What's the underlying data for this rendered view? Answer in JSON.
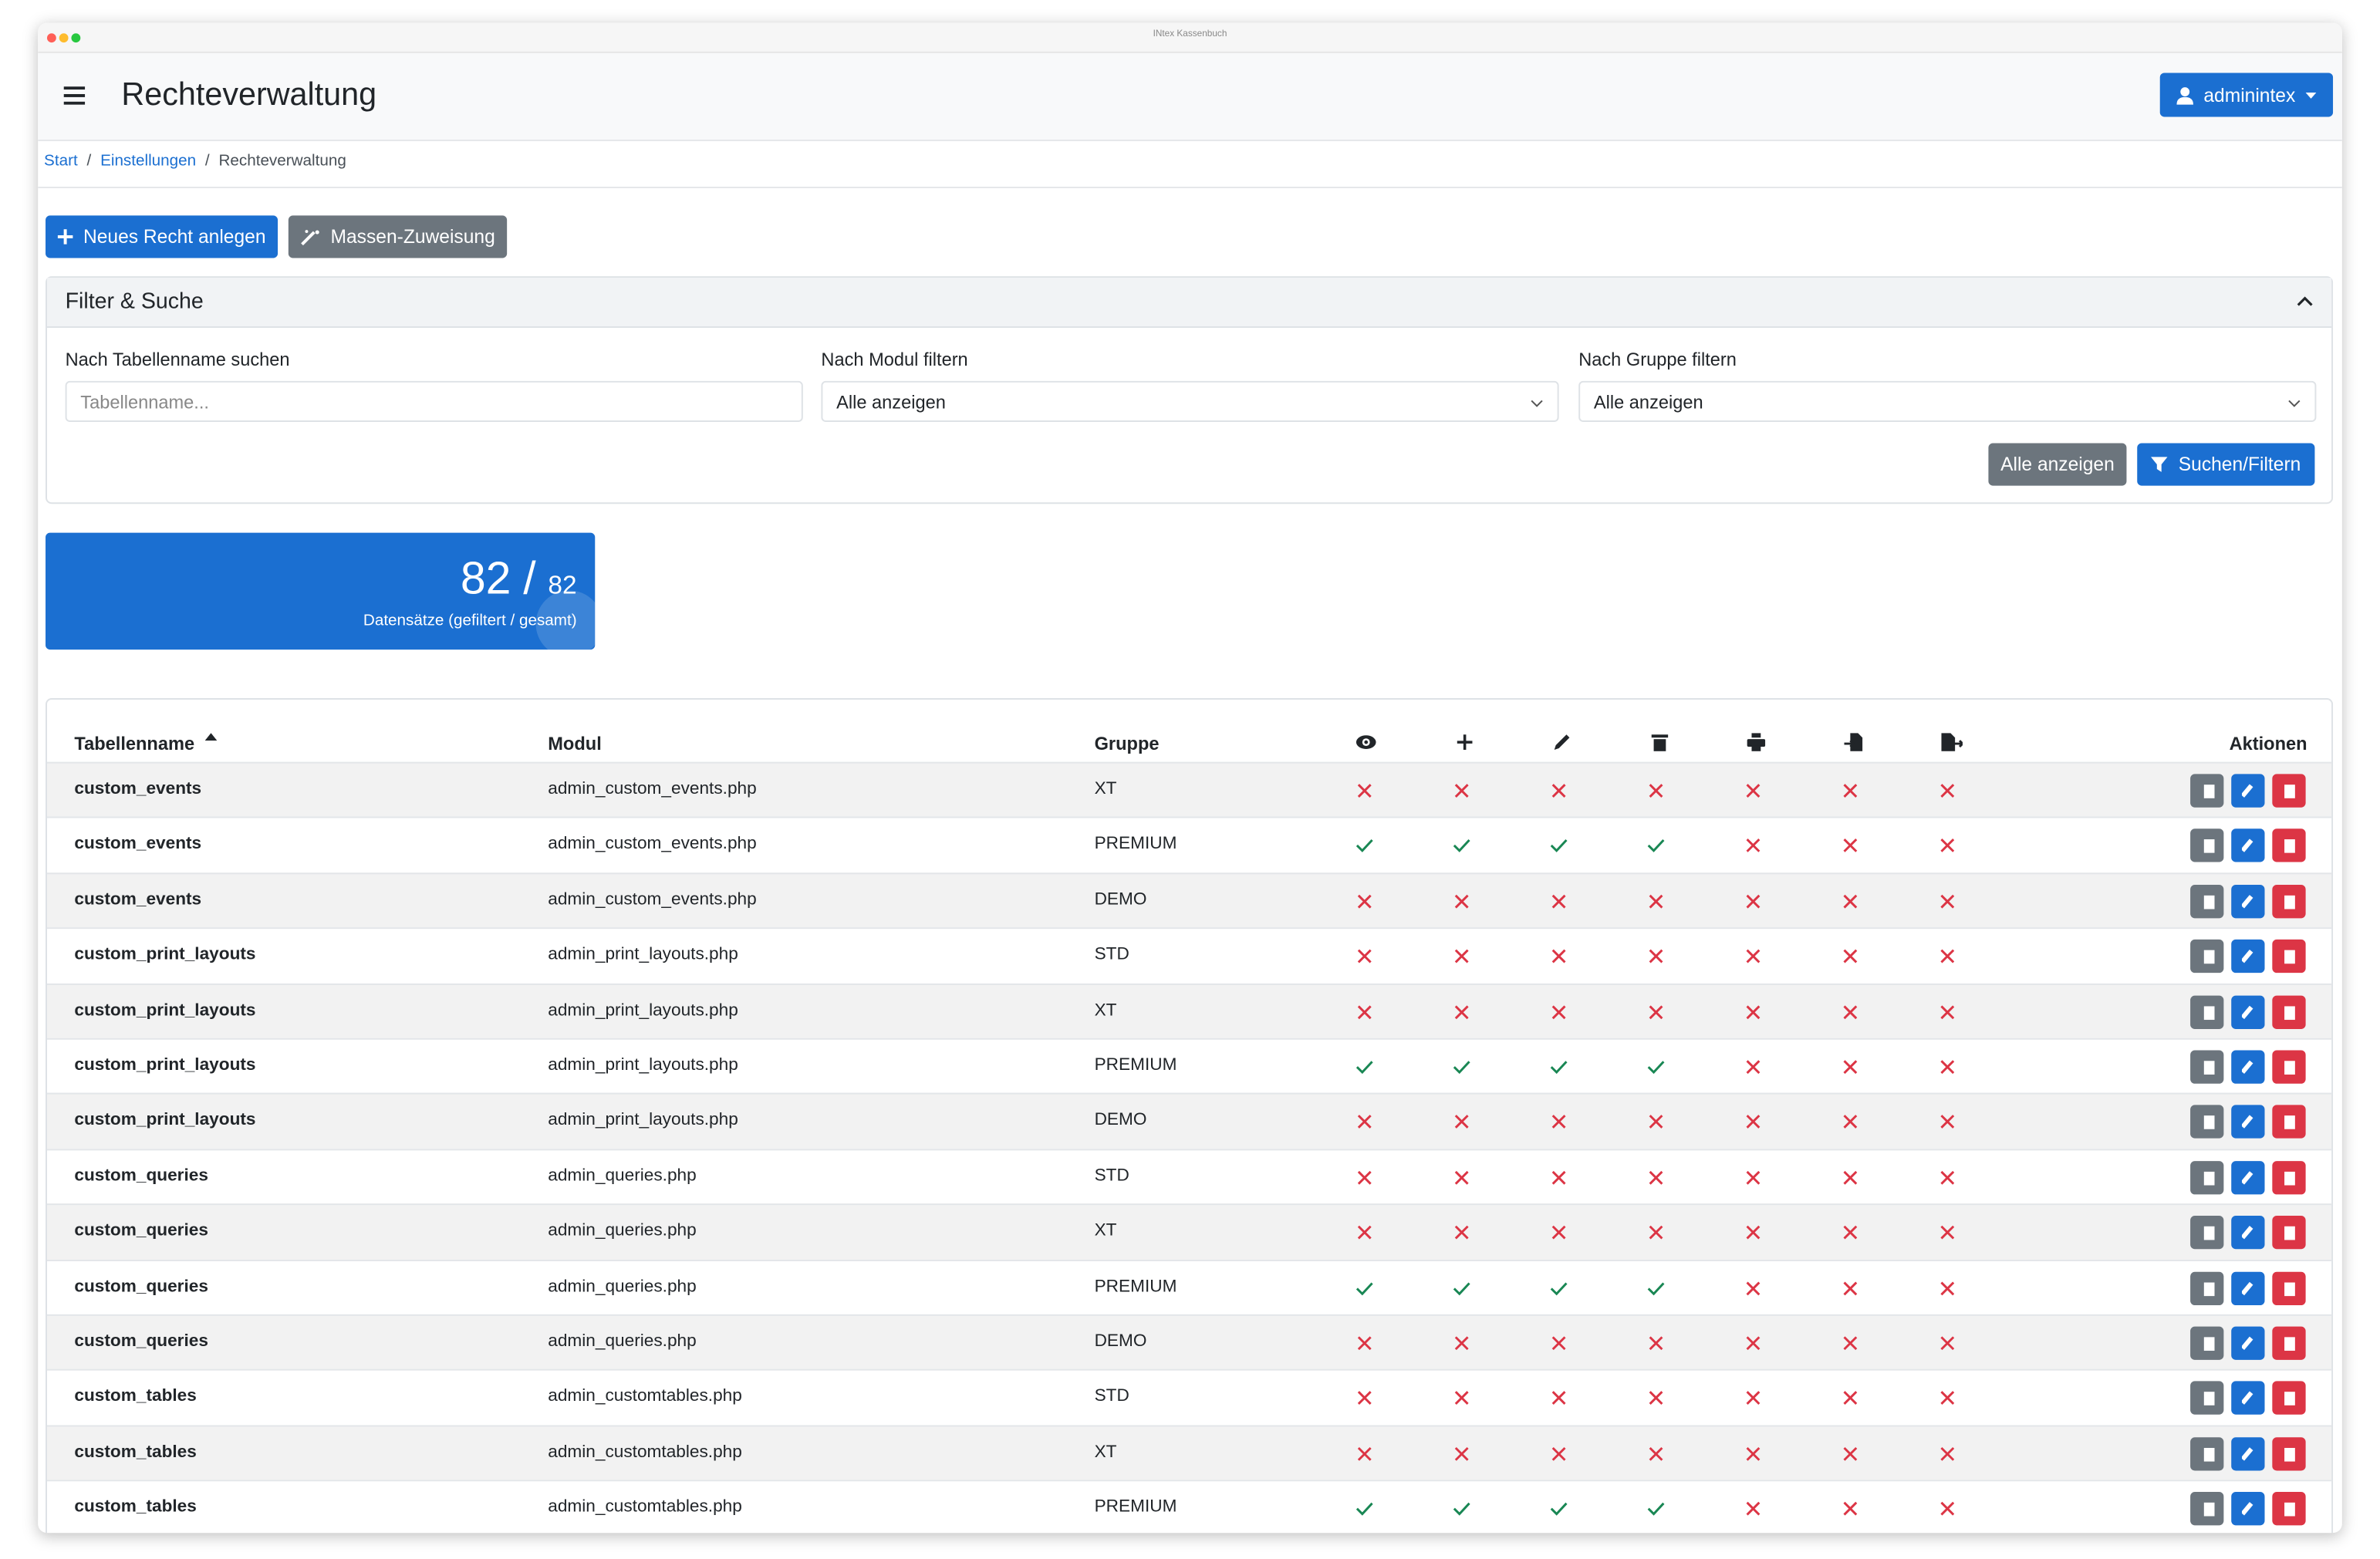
{
  "window_title": "INtex Kassenbuch",
  "header": {
    "title": "Rechteverwaltung",
    "user": "adminintex"
  },
  "breadcrumb": {
    "items": [
      "Start",
      "Einstellungen",
      "Rechteverwaltung"
    ],
    "separator": "/"
  },
  "actions": [
    "Neues Recht anlegen",
    "Massen-Zuweisung"
  ],
  "filter": {
    "title": "Filter & Suche",
    "fields": [
      {
        "label": "Nach Tabellenname suchen",
        "placeholder": "Tabellenname..."
      },
      {
        "label": "Nach Modul filtern",
        "value": "Alle anzeigen"
      },
      {
        "label": "Nach Gruppe filtern",
        "value": "Alle anzeigen"
      }
    ],
    "buttons": [
      "Alle anzeigen",
      "Suchen/Filtern"
    ]
  },
  "stats": {
    "filtered": 82,
    "separator": "/",
    "total": 82,
    "label": "Datensätze (gefiltert / gesamt)"
  },
  "table": {
    "columns": [
      "Tabellenname",
      "Modul",
      "Gruppe",
      "Aktionen"
    ],
    "rows": [
      {
        "name": "custom_events",
        "module": "admin_custom_events.php",
        "group": "XT",
        "permissions": [
          false,
          false,
          false,
          false,
          false,
          false,
          false
        ]
      },
      {
        "name": "custom_events",
        "module": "admin_custom_events.php",
        "group": "PREMIUM",
        "permissions": [
          true,
          true,
          true,
          true,
          false,
          false,
          false
        ]
      },
      {
        "name": "custom_events",
        "module": "admin_custom_events.php",
        "group": "DEMO",
        "permissions": [
          false,
          false,
          false,
          false,
          false,
          false,
          false
        ]
      },
      {
        "name": "custom_print_layouts",
        "module": "admin_print_layouts.php",
        "group": "STD",
        "permissions": [
          false,
          false,
          false,
          false,
          false,
          false,
          false
        ]
      },
      {
        "name": "custom_print_layouts",
        "module": "admin_print_layouts.php",
        "group": "XT",
        "permissions": [
          false,
          false,
          false,
          false,
          false,
          false,
          false
        ]
      },
      {
        "name": "custom_print_layouts",
        "module": "admin_print_layouts.php",
        "group": "PREMIUM",
        "permissions": [
          true,
          true,
          true,
          true,
          false,
          false,
          false
        ]
      },
      {
        "name": "custom_print_layouts",
        "module": "admin_print_layouts.php",
        "group": "DEMO",
        "permissions": [
          false,
          false,
          false,
          false,
          false,
          false,
          false
        ]
      },
      {
        "name": "custom_queries",
        "module": "admin_queries.php",
        "group": "STD",
        "permissions": [
          false,
          false,
          false,
          false,
          false,
          false,
          false
        ]
      },
      {
        "name": "custom_queries",
        "module": "admin_queries.php",
        "group": "XT",
        "permissions": [
          false,
          false,
          false,
          false,
          false,
          false,
          false
        ]
      },
      {
        "name": "custom_queries",
        "module": "admin_queries.php",
        "group": "PREMIUM",
        "permissions": [
          true,
          true,
          true,
          true,
          false,
          false,
          false
        ]
      },
      {
        "name": "custom_queries",
        "module": "admin_queries.php",
        "group": "DEMO",
        "permissions": [
          false,
          false,
          false,
          false,
          false,
          false,
          false
        ]
      },
      {
        "name": "custom_tables",
        "module": "admin_customtables.php",
        "group": "STD",
        "permissions": [
          false,
          false,
          false,
          false,
          false,
          false,
          false
        ]
      },
      {
        "name": "custom_tables",
        "module": "admin_customtables.php",
        "group": "XT",
        "permissions": [
          false,
          false,
          false,
          false,
          false,
          false,
          false
        ]
      },
      {
        "name": "custom_tables",
        "module": "admin_customtables.php",
        "group": "PREMIUM",
        "permissions": [
          true,
          true,
          true,
          true,
          false,
          false,
          false
        ]
      }
    ]
  }
}
